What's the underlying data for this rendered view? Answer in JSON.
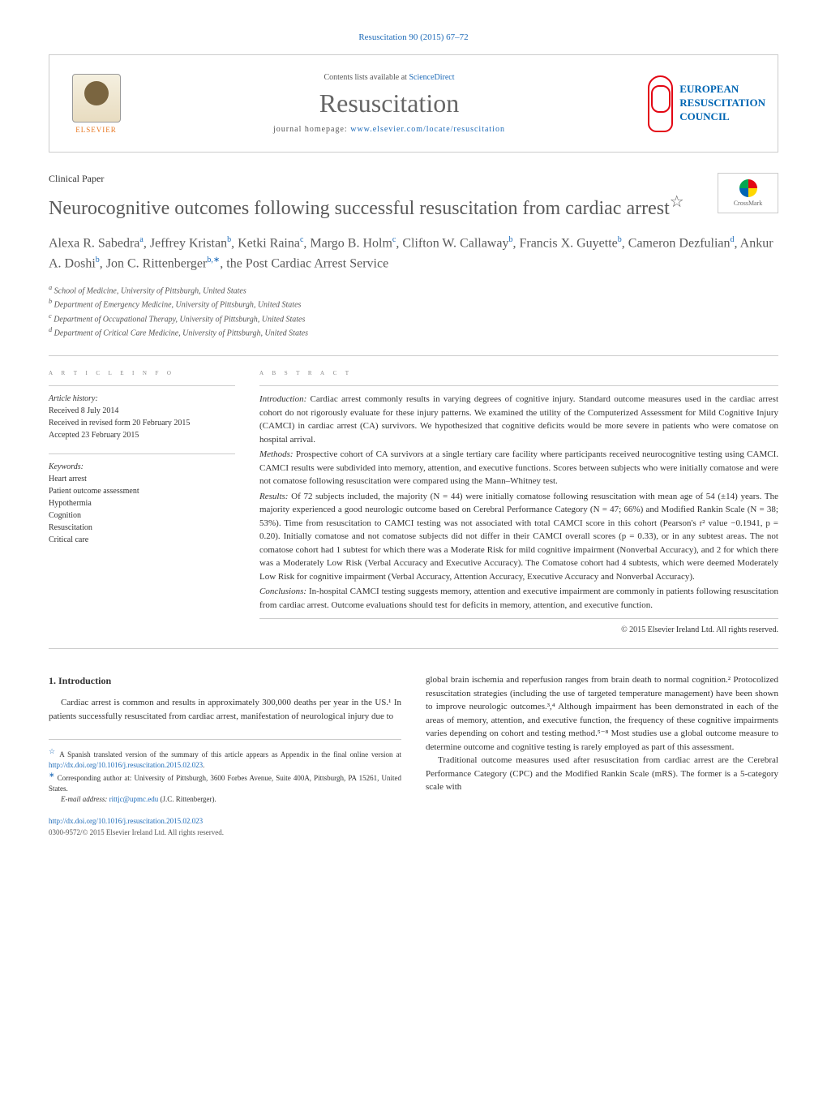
{
  "colors": {
    "link": "#1e6bb8",
    "text": "#333333",
    "heading": "#5a5a5a",
    "muted": "#888888",
    "elsevier_orange": "#e87722",
    "erc_red": "#e30613",
    "erc_blue": "#0066b3",
    "border": "#cccccc",
    "background": "#ffffff"
  },
  "header": {
    "citation": "Resuscitation 90 (2015) 67–72",
    "contents_text": "Contents lists available at ",
    "contents_link": "ScienceDirect",
    "journal_name": "Resuscitation",
    "homepage_label": "journal homepage: ",
    "homepage_url": "www.elsevier.com/locate/resuscitation",
    "elsevier_label": "ELSEVIER",
    "erc_line1": "EUROPEAN",
    "erc_line2": "RESUSCITATION",
    "erc_line3": "COUNCIL",
    "crossmark_label": "CrossMark"
  },
  "paper": {
    "type": "Clinical Paper",
    "title": "Neurocognitive outcomes following successful resuscitation from cardiac arrest",
    "title_note": "☆",
    "authors_html": "Alexa R. Sabedra<sup>a</sup>, Jeffrey Kristan<sup>b</sup>, Ketki Raina<sup>c</sup>, Margo B. Holm<sup>c</sup>, Clifton W. Callaway<sup>b</sup>, Francis X. Guyette<sup>b</sup>, Cameron Dezfulian<sup>d</sup>, Ankur A. Doshi<sup>b</sup>, Jon C. Rittenberger<sup>b,∗</sup>, the Post Cardiac Arrest Service",
    "affiliations": [
      "a School of Medicine, University of Pittsburgh, United States",
      "b Department of Emergency Medicine, University of Pittsburgh, United States",
      "c Department of Occupational Therapy, University of Pittsburgh, United States",
      "d Department of Critical Care Medicine, University of Pittsburgh, United States"
    ]
  },
  "article_info": {
    "section_header": "A R T I C L E   I N F O",
    "history_label": "Article history:",
    "received": "Received 8 July 2014",
    "revised": "Received in revised form 20 February 2015",
    "accepted": "Accepted 23 February 2015",
    "keywords_label": "Keywords:",
    "keywords": [
      "Heart arrest",
      "Patient outcome assessment",
      "Hypothermia",
      "Cognition",
      "Resuscitation",
      "Critical care"
    ]
  },
  "abstract": {
    "section_header": "A B S T R A C T",
    "introduction_label": "Introduction:",
    "introduction": " Cardiac arrest commonly results in varying degrees of cognitive injury. Standard outcome measures used in the cardiac arrest cohort do not rigorously evaluate for these injury patterns. We examined the utility of the Computerized Assessment for Mild Cognitive Injury (CAMCI) in cardiac arrest (CA) survivors. We hypothesized that cognitive deficits would be more severe in patients who were comatose on hospital arrival.",
    "methods_label": "Methods:",
    "methods": " Prospective cohort of CA survivors at a single tertiary care facility where participants received neurocognitive testing using CAMCI. CAMCI results were subdivided into memory, attention, and executive functions. Scores between subjects who were initially comatose and were not comatose following resuscitation were compared using the Mann–Whitney test.",
    "results_label": "Results:",
    "results": " Of 72 subjects included, the majority (N = 44) were initially comatose following resuscitation with mean age of 54 (±14) years. The majority experienced a good neurologic outcome based on Cerebral Performance Category (N = 47; 66%) and Modified Rankin Scale (N = 38; 53%). Time from resuscitation to CAMCI testing was not associated with total CAMCI score in this cohort (Pearson's r² value −0.1941, p = 0.20). Initially comatose and not comatose subjects did not differ in their CAMCI overall scores (p = 0.33), or in any subtest areas. The not comatose cohort had 1 subtest for which there was a Moderate Risk for mild cognitive impairment (Nonverbal Accuracy), and 2 for which there was a Moderately Low Risk (Verbal Accuracy and Executive Accuracy). The Comatose cohort had 4 subtests, which were deemed Moderately Low Risk for cognitive impairment (Verbal Accuracy, Attention Accuracy, Executive Accuracy and Nonverbal Accuracy).",
    "conclusions_label": "Conclusions:",
    "conclusions": " In-hospital CAMCI testing suggests memory, attention and executive impairment are commonly in patients following resuscitation from cardiac arrest. Outcome evaluations should test for deficits in memory, attention, and executive function.",
    "copyright": "© 2015 Elsevier Ireland Ltd. All rights reserved."
  },
  "body": {
    "heading": "1.  Introduction",
    "col1_p1": "Cardiac arrest is common and results in approximately 300,000 deaths per year in the US.¹ In patients successfully resuscitated from cardiac arrest, manifestation of neurological injury due to",
    "col2_p1": "global brain ischemia and reperfusion ranges from brain death to normal cognition.² Protocolized resuscitation strategies (including the use of targeted temperature management) have been shown to improve neurologic outcomes.³,⁴ Although impairment has been demonstrated in each of the areas of memory, attention, and executive function, the frequency of these cognitive impairments varies depending on cohort and testing method.⁵⁻⁸ Most studies use a global outcome measure to determine outcome and cognitive testing is rarely employed as part of this assessment.",
    "col2_p2": "Traditional outcome measures used after resuscitation from cardiac arrest are the Cerebral Performance Category (CPC) and the Modified Rankin Scale (mRS). The former is a 5-category scale with"
  },
  "footnotes": {
    "note1_marker": "☆",
    "note1": " A Spanish translated version of the summary of this article appears as Appendix in the final online version at ",
    "note1_link": "http://dx.doi.org/10.1016/j.resuscitation.2015.02.023",
    "note2_marker": "∗",
    "note2": " Corresponding author at: University of Pittsburgh, 3600 Forbes Avenue, Suite 400A, Pittsburgh, PA 15261, United States.",
    "email_label": "E-mail address: ",
    "email": "rittjc@upmc.edu",
    "email_name": " (J.C. Rittenberger)."
  },
  "doi": {
    "link": "http://dx.doi.org/10.1016/j.resuscitation.2015.02.023",
    "issn_line": "0300-9572/© 2015 Elsevier Ireland Ltd. All rights reserved."
  }
}
